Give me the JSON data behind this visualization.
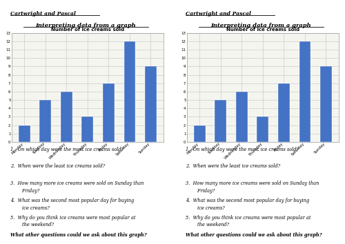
{
  "days": [
    "Monday",
    "Tuesday",
    "Wednesday",
    "Thursday",
    "Friday",
    "Saturday",
    "Sunday"
  ],
  "values": [
    2,
    5,
    6,
    3,
    7,
    12,
    9
  ],
  "chart_title": "Number of ice creams sold",
  "bar_color": "#4472C4",
  "ylim": [
    0,
    13
  ],
  "yticks": [
    0,
    1,
    2,
    3,
    4,
    5,
    6,
    7,
    8,
    9,
    10,
    11,
    12,
    13
  ],
  "header": "Cartwright and Pascal",
  "section_title": "Interpreting data from a graph",
  "questions": [
    "On which day were the most ice creams sold?",
    "When were the least ice creams sold?",
    "How many more ice creams were sold on Sunday than Friday?",
    "What was the second most popular day for buying ice creams?",
    "Why do you think ice creams were most popular at the weekend?"
  ],
  "footer": "What other questions could we ask about this graph?",
  "bg_color": "#ffffff",
  "grid_color": "#c0c0c0",
  "chart_bg": "#f5f5f0"
}
